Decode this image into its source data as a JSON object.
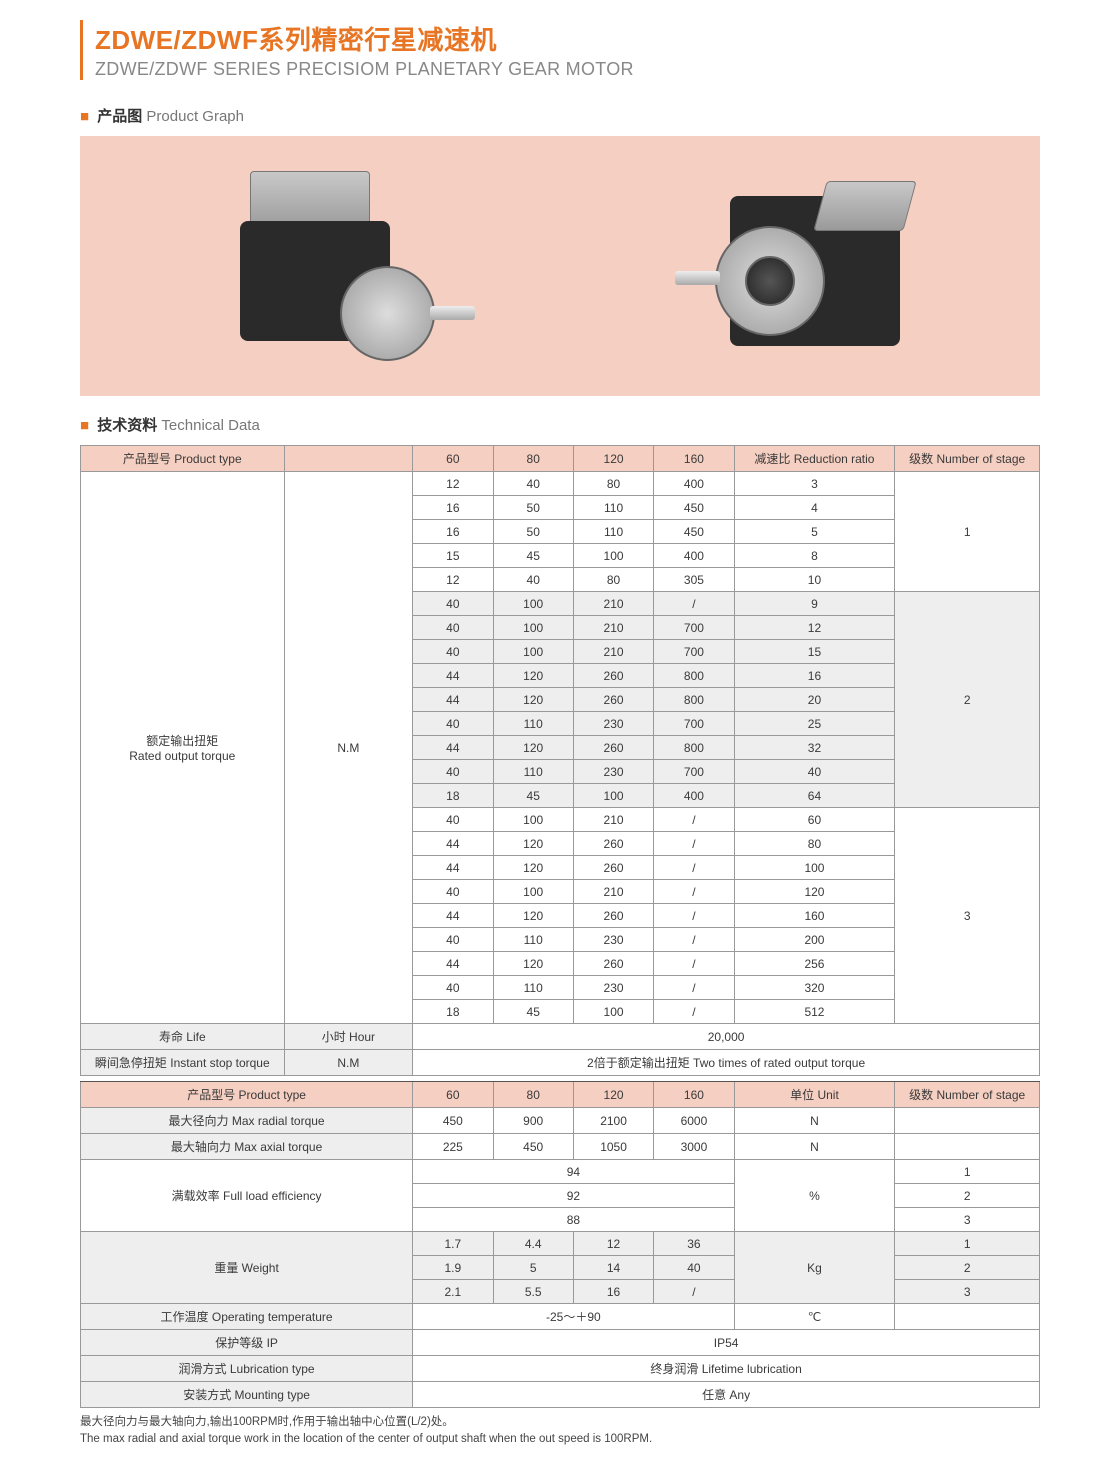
{
  "title": {
    "cn": "ZDWE/ZDWF系列精密行星减速机",
    "en": "ZDWE/ZDWF SERIES PRECISIOM PLANETARY GEAR MOTOR"
  },
  "sections": {
    "productGraph": {
      "cn": "产品图",
      "en": "Product Graph"
    },
    "technicalData": {
      "cn": "技术资料",
      "en": "Technical Data"
    }
  },
  "colors": {
    "accent": "#e87524",
    "hdrBg": "#f5cfc1",
    "greyBg": "#eeeeee",
    "border": "#999999",
    "textDark": "#3a3a3a",
    "textGrey": "#888888"
  },
  "tbl1": {
    "headers": {
      "productType": "产品型号 Product type",
      "sizes": [
        "60",
        "80",
        "120",
        "160"
      ],
      "reductionRatio": "减速比 Reduction ratio",
      "numStage": "级数 Number of stage"
    },
    "ratedOutputTorque": {
      "cn": "额定输出扭矩",
      "en": "Rated output torque",
      "unit": "N.M"
    },
    "stages": [
      {
        "stage": "1",
        "rows": [
          [
            "12",
            "40",
            "80",
            "400",
            "3"
          ],
          [
            "16",
            "50",
            "110",
            "450",
            "4"
          ],
          [
            "16",
            "50",
            "110",
            "450",
            "5"
          ],
          [
            "15",
            "45",
            "100",
            "400",
            "8"
          ],
          [
            "12",
            "40",
            "80",
            "305",
            "10"
          ]
        ]
      },
      {
        "stage": "2",
        "bg": "grey",
        "rows": [
          [
            "40",
            "100",
            "210",
            "/",
            "9"
          ],
          [
            "40",
            "100",
            "210",
            "700",
            "12"
          ],
          [
            "40",
            "100",
            "210",
            "700",
            "15"
          ],
          [
            "44",
            "120",
            "260",
            "800",
            "16"
          ],
          [
            "44",
            "120",
            "260",
            "800",
            "20"
          ],
          [
            "40",
            "110",
            "230",
            "700",
            "25"
          ],
          [
            "44",
            "120",
            "260",
            "800",
            "32"
          ],
          [
            "40",
            "110",
            "230",
            "700",
            "40"
          ],
          [
            "18",
            "45",
            "100",
            "400",
            "64"
          ]
        ]
      },
      {
        "stage": "3",
        "rows": [
          [
            "40",
            "100",
            "210",
            "/",
            "60"
          ],
          [
            "44",
            "120",
            "260",
            "/",
            "80"
          ],
          [
            "44",
            "120",
            "260",
            "/",
            "100"
          ],
          [
            "40",
            "100",
            "210",
            "/",
            "120"
          ],
          [
            "44",
            "120",
            "260",
            "/",
            "160"
          ],
          [
            "40",
            "110",
            "230",
            "/",
            "200"
          ],
          [
            "44",
            "120",
            "260",
            "/",
            "256"
          ],
          [
            "40",
            "110",
            "230",
            "/",
            "320"
          ],
          [
            "18",
            "45",
            "100",
            "/",
            "512"
          ]
        ]
      }
    ],
    "life": {
      "label": "寿命 Life",
      "unit": "小时 Hour",
      "value": "20,000"
    },
    "instantStop": {
      "label": "瞬间急停扭矩 Instant stop torque",
      "unit": "N.M",
      "value": "2倍于额定输出扭矩 Two times of rated output torque"
    }
  },
  "tbl2": {
    "headers": {
      "productType": "产品型号 Product type",
      "sizes": [
        "60",
        "80",
        "120",
        "160"
      ],
      "unit": "单位 Unit",
      "numStage": "级数 Number of stage"
    },
    "maxRadial": {
      "label": "最大径向力 Max radial torque",
      "vals": [
        "450",
        "900",
        "2100",
        "6000"
      ],
      "unit": "N"
    },
    "maxAxial": {
      "label": "最大轴向力 Max axial torque",
      "vals": [
        "225",
        "450",
        "1050",
        "3000"
      ],
      "unit": "N"
    },
    "efficiency": {
      "label": "满载效率 Full load efficiency",
      "unit": "%",
      "rows": [
        {
          "val": "94",
          "stage": "1"
        },
        {
          "val": "92",
          "stage": "2"
        },
        {
          "val": "88",
          "stage": "3"
        }
      ]
    },
    "weight": {
      "label": "重量 Weight",
      "unit": "Kg",
      "rows": [
        {
          "vals": [
            "1.7",
            "4.4",
            "12",
            "36"
          ],
          "stage": "1"
        },
        {
          "vals": [
            "1.9",
            "5",
            "14",
            "40"
          ],
          "stage": "2"
        },
        {
          "vals": [
            "2.1",
            "5.5",
            "16",
            "/"
          ],
          "stage": "3"
        }
      ]
    },
    "operatingTemp": {
      "label": "工作温度 Operating temperature",
      "value": "-25～＋90",
      "unit": "℃"
    },
    "ip": {
      "label": "保护等级 IP",
      "value": "IP54"
    },
    "lubrication": {
      "label": "润滑方式 Lubrication type",
      "value": "终身润滑 Lifetime lubrication"
    },
    "mounting": {
      "label": "安装方式 Mounting type",
      "value": "任意 Any"
    }
  },
  "footnote": {
    "cn": "最大径向力与最大轴向力,输出100RPM时,作用于输出轴中心位置(L/2)处。",
    "en": "The max radial and axial torque work in the location of the center of output shaft when the out speed is 100RPM."
  }
}
